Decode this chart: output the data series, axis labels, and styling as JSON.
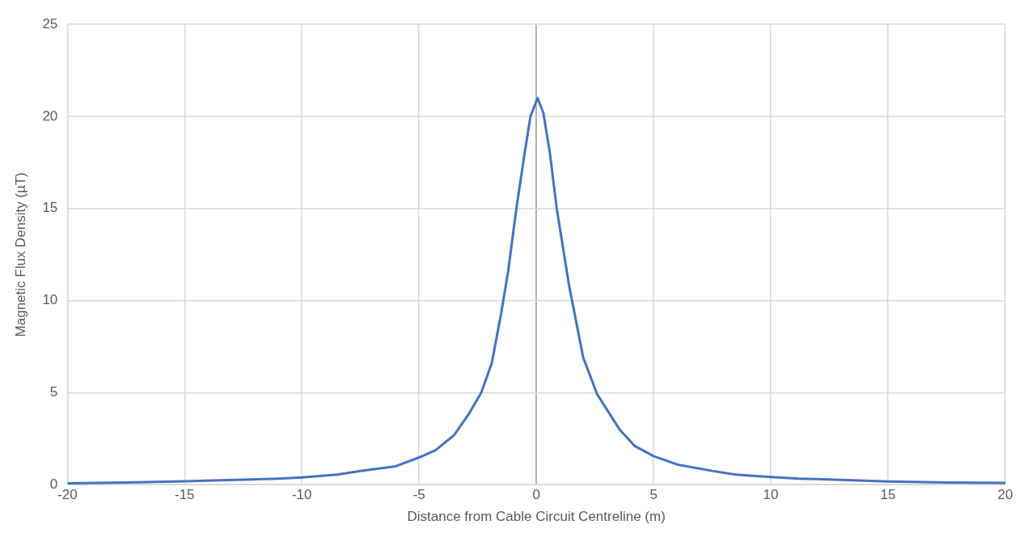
{
  "chart_data": {
    "type": "line",
    "xlabel": "Distance from Cable Circuit Centreline (m)",
    "ylabel": "Magnetic Flux Density (µT)",
    "x": [
      -20,
      -17.5,
      -15,
      -12.5,
      -11,
      -10,
      -8.5,
      -7.5,
      -6,
      -5,
      -4.3,
      -3.5,
      -2.9,
      -2.35,
      -1.9,
      -1.5,
      -1.2,
      -0.85,
      -0.5,
      -0.25,
      0.05,
      0.3,
      0.58,
      0.87,
      1.4,
      2.0,
      2.6,
      3.55,
      4.2,
      5,
      6,
      7.5,
      8.5,
      10,
      11.2,
      12.5,
      15,
      17.5,
      20
    ],
    "series": [
      {
        "color": "#4472c4",
        "values": [
          0.08,
          0.12,
          0.19,
          0.27,
          0.33,
          0.39,
          0.55,
          0.74,
          1.0,
          1.48,
          1.87,
          2.7,
          3.8,
          5.0,
          6.6,
          9.3,
          11.6,
          15.0,
          18.0,
          20.0,
          21.0,
          20.2,
          18.0,
          15.0,
          10.8,
          6.9,
          4.9,
          3.0,
          2.1,
          1.55,
          1.1,
          0.75,
          0.55,
          0.42,
          0.33,
          0.28,
          0.17,
          0.12,
          0.1
        ]
      }
    ],
    "xlim": [
      -20,
      20
    ],
    "xticks": [
      -20,
      -15,
      -10,
      -5,
      0,
      5,
      10,
      15,
      20
    ],
    "ylim": [
      0,
      25
    ],
    "yticks": [
      0,
      5,
      10,
      15,
      20,
      25
    ],
    "grid": true,
    "legend": false,
    "marker": "none",
    "line_style": "solid"
  }
}
